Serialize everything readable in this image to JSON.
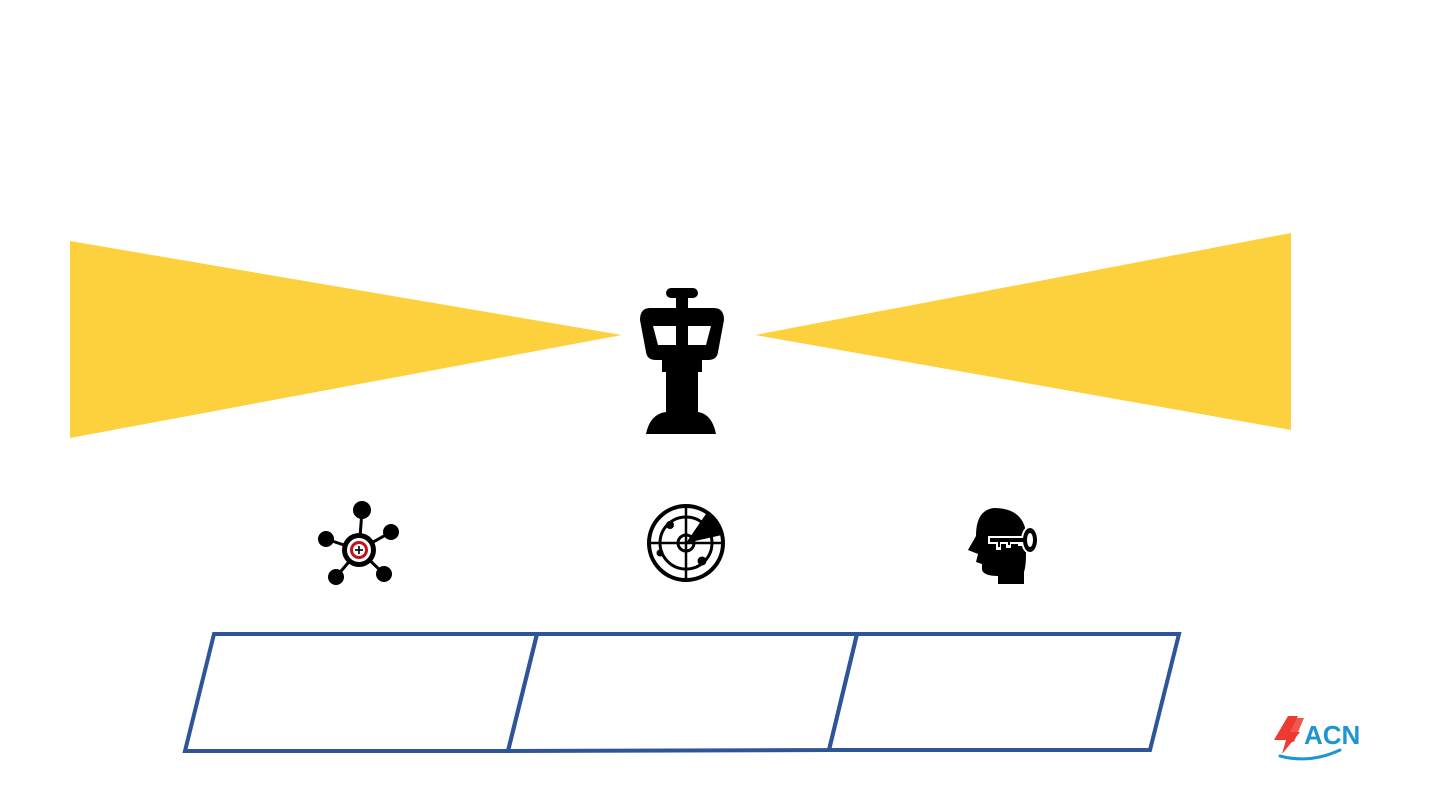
{
  "colors": {
    "beam": "#FDD13E",
    "icon": "#000000",
    "target_ring": "#C0141C",
    "frame": "#2E5597",
    "logo_red": "#EC3B30",
    "logo_blue": "#1E95D3"
  },
  "icons": {
    "tower": "control-tower-icon",
    "network": "network-target-icon",
    "radar": "radar-icon",
    "head_key": "head-key-icon"
  },
  "logo": {
    "text": "ACN",
    "mark": "4"
  },
  "panels": [
    {
      "label": ""
    },
    {
      "label": ""
    },
    {
      "label": ""
    }
  ]
}
